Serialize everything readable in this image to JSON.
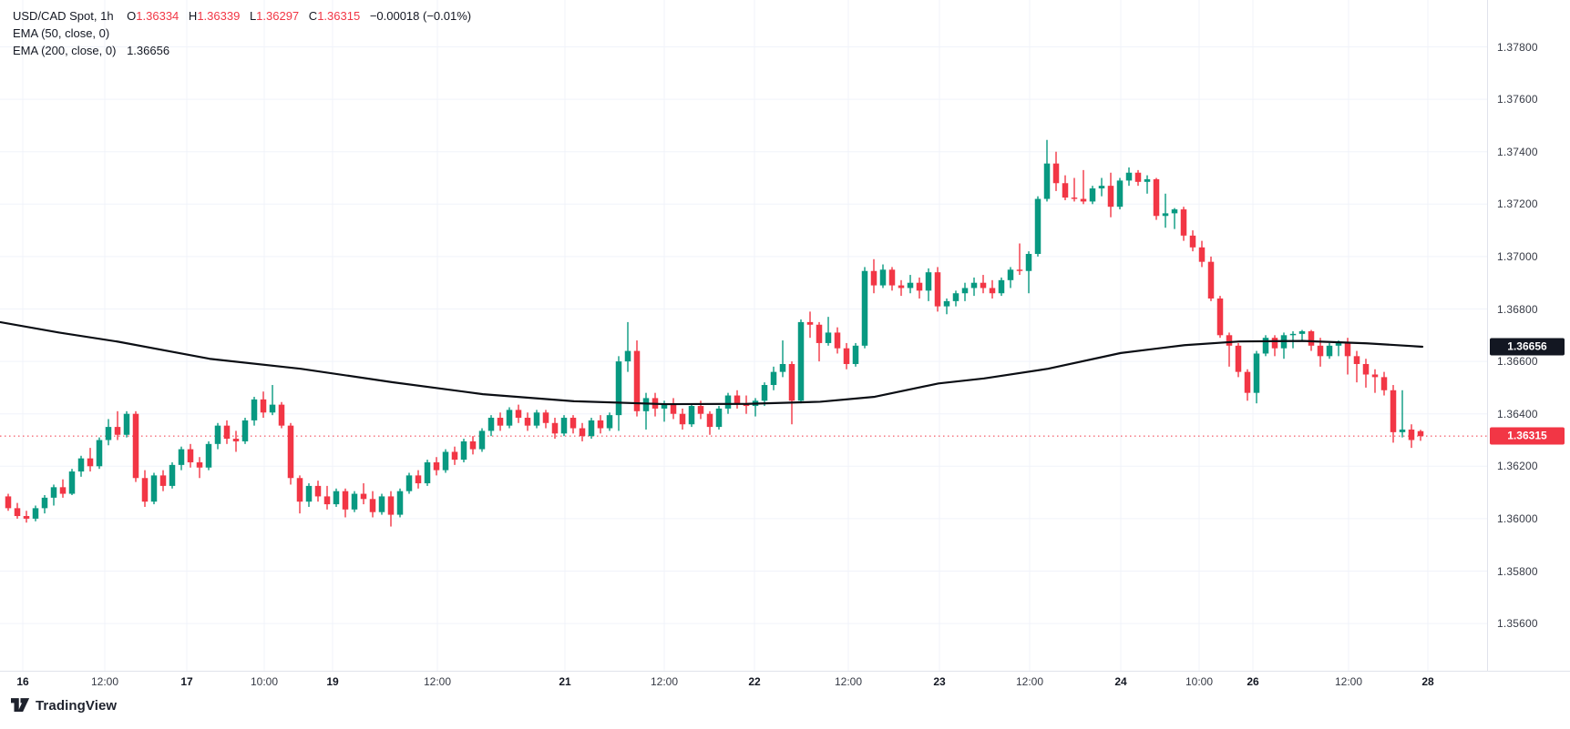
{
  "header": {
    "title": "USD/CAD Spot, 1h",
    "o_label": "O",
    "o": "1.36334",
    "h_label": "H",
    "h": "1.36339",
    "l_label": "L",
    "l": "1.36297",
    "c_label": "C",
    "c": "1.36315",
    "change": "−0.00018 (−0.01%)"
  },
  "indicators": [
    {
      "label": "EMA (50, close, 0)",
      "value": ""
    },
    {
      "label": "EMA (200, close, 0)",
      "value": "1.36656"
    }
  ],
  "logo_text": "TradingView",
  "colors": {
    "up": "#089981",
    "down": "#f23645",
    "ema_line": "#0b0e14",
    "grid": "#f0f3fa",
    "axis_text": "#363a45",
    "last_price": "#f23645",
    "badge_ema_bg": "#131722",
    "badge_last_bg": "#f23645"
  },
  "price_axis": {
    "labels": [
      "1.37800",
      "1.37600",
      "1.37400",
      "1.37200",
      "1.37000",
      "1.36800",
      "1.36600",
      "1.36400",
      "1.36200",
      "1.36000",
      "1.35800",
      "1.35600"
    ],
    "badges": [
      {
        "text": "1.36656",
        "price": 1.36656,
        "bg": "#131722"
      },
      {
        "text": "1.36315",
        "price": 1.36315,
        "bg": "#f23645"
      }
    ]
  },
  "time_axis": {
    "ticks": [
      {
        "label": "16",
        "x": 25,
        "major": true
      },
      {
        "label": "12:00",
        "x": 115,
        "major": false
      },
      {
        "label": "17",
        "x": 205,
        "major": true
      },
      {
        "label": "10:00",
        "x": 290,
        "major": false
      },
      {
        "label": "19",
        "x": 365,
        "major": true
      },
      {
        "label": "12:00",
        "x": 480,
        "major": false
      },
      {
        "label": "21",
        "x": 620,
        "major": true
      },
      {
        "label": "12:00",
        "x": 729,
        "major": false
      },
      {
        "label": "22",
        "x": 828,
        "major": true
      },
      {
        "label": "12:00",
        "x": 931,
        "major": false
      },
      {
        "label": "23",
        "x": 1031,
        "major": true
      },
      {
        "label": "12:00",
        "x": 1130,
        "major": false
      },
      {
        "label": "24",
        "x": 1230,
        "major": true
      },
      {
        "label": "10:00",
        "x": 1316,
        "major": false
      },
      {
        "label": "26",
        "x": 1375,
        "major": true
      },
      {
        "label": "12:00",
        "x": 1480,
        "major": false
      },
      {
        "label": "28",
        "x": 1567,
        "major": true
      }
    ]
  },
  "chart_data": {
    "type": "candlestick",
    "title": "USD/CAD Spot, 1h",
    "symbol": "USD/CAD",
    "timeframe": "1h",
    "ylim": [
      1.3553,
      1.3798
    ],
    "y_tick_step": 0.002,
    "grid": true,
    "last_close": 1.36315,
    "last_ohlc": {
      "open": 1.36334,
      "high": 1.36339,
      "low": 1.36297,
      "close": 1.36315
    },
    "change": -0.00018,
    "change_pct": -0.01,
    "ema200_last": 1.36656,
    "price_line": {
      "price": 1.36315,
      "style": "dotted",
      "color": "#f23645"
    },
    "candles": [
      [
        1.36085,
        1.36095,
        1.3603,
        1.3604
      ],
      [
        1.3604,
        1.3606,
        1.36,
        1.3601
      ],
      [
        1.3601,
        1.3603,
        1.35985,
        1.36
      ],
      [
        1.36,
        1.3605,
        1.3599,
        1.3604
      ],
      [
        1.3604,
        1.3609,
        1.3602,
        1.3608
      ],
      [
        1.3608,
        1.3613,
        1.3605,
        1.3612
      ],
      [
        1.3612,
        1.3615,
        1.3608,
        1.36095
      ],
      [
        1.36095,
        1.3619,
        1.3609,
        1.3618
      ],
      [
        1.3618,
        1.3624,
        1.3616,
        1.3623
      ],
      [
        1.3623,
        1.3627,
        1.3618,
        1.362
      ],
      [
        1.362,
        1.3631,
        1.3619,
        1.363
      ],
      [
        1.363,
        1.3638,
        1.3628,
        1.3635
      ],
      [
        1.3635,
        1.3641,
        1.363,
        1.3632
      ],
      [
        1.3632,
        1.3641,
        1.3631,
        1.364
      ],
      [
        1.364,
        1.3641,
        1.3614,
        1.36155
      ],
      [
        1.36155,
        1.36185,
        1.36045,
        1.36065
      ],
      [
        1.36065,
        1.36175,
        1.36055,
        1.36165
      ],
      [
        1.36165,
        1.36185,
        1.36105,
        1.36125
      ],
      [
        1.36125,
        1.36215,
        1.36115,
        1.36205
      ],
      [
        1.36205,
        1.36275,
        1.36185,
        1.36265
      ],
      [
        1.36265,
        1.36285,
        1.36195,
        1.36215
      ],
      [
        1.36215,
        1.36235,
        1.36155,
        1.36195
      ],
      [
        1.36195,
        1.36295,
        1.36185,
        1.36285
      ],
      [
        1.36285,
        1.36365,
        1.36265,
        1.36355
      ],
      [
        1.36355,
        1.36375,
        1.36285,
        1.36305
      ],
      [
        1.36305,
        1.36335,
        1.36255,
        1.36295
      ],
      [
        1.36295,
        1.36385,
        1.36285,
        1.36375
      ],
      [
        1.36375,
        1.36465,
        1.36355,
        1.36455
      ],
      [
        1.36455,
        1.36485,
        1.36385,
        1.36405
      ],
      [
        1.36405,
        1.3651,
        1.36395,
        1.36435
      ],
      [
        1.36435,
        1.36445,
        1.36345,
        1.36355
      ],
      [
        1.36355,
        1.36365,
        1.3613,
        1.36155
      ],
      [
        1.36155,
        1.36165,
        1.3602,
        1.36065
      ],
      [
        1.36065,
        1.36135,
        1.36045,
        1.36125
      ],
      [
        1.36125,
        1.36145,
        1.36065,
        1.36085
      ],
      [
        1.36085,
        1.36125,
        1.36035,
        1.36055
      ],
      [
        1.36055,
        1.36115,
        1.36045,
        1.36105
      ],
      [
        1.36105,
        1.36115,
        1.36005,
        1.36035
      ],
      [
        1.36035,
        1.36105,
        1.36025,
        1.36095
      ],
      [
        1.36095,
        1.36135,
        1.36055,
        1.36075
      ],
      [
        1.36075,
        1.36105,
        1.36005,
        1.36025
      ],
      [
        1.36025,
        1.36095,
        1.36015,
        1.36085
      ],
      [
        1.36085,
        1.36105,
        1.3597,
        1.36015
      ],
      [
        1.36015,
        1.36115,
        1.36005,
        1.36105
      ],
      [
        1.36105,
        1.36175,
        1.36095,
        1.36165
      ],
      [
        1.36165,
        1.36185,
        1.36115,
        1.36135
      ],
      [
        1.36135,
        1.36225,
        1.36125,
        1.36215
      ],
      [
        1.36215,
        1.36235,
        1.36165,
        1.36185
      ],
      [
        1.36185,
        1.36265,
        1.36175,
        1.36255
      ],
      [
        1.36255,
        1.36275,
        1.36205,
        1.36225
      ],
      [
        1.36225,
        1.36305,
        1.36215,
        1.36295
      ],
      [
        1.36295,
        1.36315,
        1.36245,
        1.36265
      ],
      [
        1.36265,
        1.36345,
        1.36255,
        1.36335
      ],
      [
        1.36335,
        1.36395,
        1.36315,
        1.36385
      ],
      [
        1.36385,
        1.36405,
        1.36335,
        1.36355
      ],
      [
        1.36355,
        1.36425,
        1.36345,
        1.36415
      ],
      [
        1.36415,
        1.36435,
        1.36365,
        1.36385
      ],
      [
        1.36385,
        1.36405,
        1.36335,
        1.36355
      ],
      [
        1.36355,
        1.36415,
        1.36345,
        1.36405
      ],
      [
        1.36405,
        1.36415,
        1.36345,
        1.36365
      ],
      [
        1.36365,
        1.36385,
        1.36305,
        1.36325
      ],
      [
        1.36325,
        1.36395,
        1.36315,
        1.36385
      ],
      [
        1.36385,
        1.36395,
        1.36325,
        1.36345
      ],
      [
        1.36345,
        1.36365,
        1.36295,
        1.36315
      ],
      [
        1.36315,
        1.36385,
        1.36305,
        1.36375
      ],
      [
        1.36375,
        1.36395,
        1.36325,
        1.36345
      ],
      [
        1.36345,
        1.36405,
        1.36335,
        1.36395
      ],
      [
        1.36395,
        1.3662,
        1.36335,
        1.366
      ],
      [
        1.366,
        1.3675,
        1.3656,
        1.3664
      ],
      [
        1.3664,
        1.3668,
        1.3639,
        1.3641
      ],
      [
        1.3641,
        1.3648,
        1.3634,
        1.3646
      ],
      [
        1.3646,
        1.3648,
        1.3639,
        1.3642
      ],
      [
        1.3642,
        1.3645,
        1.3637,
        1.3644
      ],
      [
        1.3644,
        1.3646,
        1.3638,
        1.364
      ],
      [
        1.364,
        1.3642,
        1.3634,
        1.3636
      ],
      [
        1.3636,
        1.3644,
        1.3635,
        1.3643
      ],
      [
        1.3643,
        1.3645,
        1.3638,
        1.364
      ],
      [
        1.364,
        1.3641,
        1.3632,
        1.3635
      ],
      [
        1.3635,
        1.3643,
        1.3634,
        1.3642
      ],
      [
        1.3642,
        1.3648,
        1.364,
        1.3647
      ],
      [
        1.3647,
        1.3649,
        1.3642,
        1.3644
      ],
      [
        1.3644,
        1.3647,
        1.364,
        1.3643
      ],
      [
        1.3643,
        1.3646,
        1.3639,
        1.3645
      ],
      [
        1.3645,
        1.3652,
        1.3643,
        1.3651
      ],
      [
        1.3651,
        1.3658,
        1.3649,
        1.3656
      ],
      [
        1.3656,
        1.3668,
        1.3654,
        1.3659
      ],
      [
        1.3659,
        1.366,
        1.3636,
        1.3645
      ],
      [
        1.3645,
        1.3676,
        1.3644,
        1.3675
      ],
      [
        1.3675,
        1.3679,
        1.3669,
        1.3674
      ],
      [
        1.3674,
        1.3675,
        1.366,
        1.3667
      ],
      [
        1.3667,
        1.3677,
        1.3666,
        1.3671
      ],
      [
        1.3671,
        1.3673,
        1.3663,
        1.3665
      ],
      [
        1.3665,
        1.3667,
        1.3657,
        1.3659
      ],
      [
        1.3659,
        1.3667,
        1.3658,
        1.3666
      ],
      [
        1.3666,
        1.3696,
        1.3665,
        1.36945
      ],
      [
        1.36945,
        1.3699,
        1.3686,
        1.3689
      ],
      [
        1.3689,
        1.3697,
        1.3688,
        1.3695
      ],
      [
        1.3695,
        1.3696,
        1.3687,
        1.3689
      ],
      [
        1.3689,
        1.3691,
        1.3685,
        1.3688
      ],
      [
        1.3688,
        1.3693,
        1.3686,
        1.369
      ],
      [
        1.369,
        1.3692,
        1.3684,
        1.3687
      ],
      [
        1.3687,
        1.36955,
        1.3683,
        1.3694
      ],
      [
        1.3694,
        1.3696,
        1.3679,
        1.3681
      ],
      [
        1.3681,
        1.3684,
        1.3678,
        1.3683
      ],
      [
        1.3683,
        1.3687,
        1.3681,
        1.3686
      ],
      [
        1.3686,
        1.369,
        1.3683,
        1.3688
      ],
      [
        1.3688,
        1.3692,
        1.3685,
        1.369
      ],
      [
        1.369,
        1.3693,
        1.3686,
        1.3688
      ],
      [
        1.3688,
        1.3691,
        1.3684,
        1.3686
      ],
      [
        1.3686,
        1.3692,
        1.3685,
        1.3691
      ],
      [
        1.3691,
        1.3696,
        1.3688,
        1.3695
      ],
      [
        1.3695,
        1.3705,
        1.3693,
        1.36945
      ],
      [
        1.36945,
        1.3702,
        1.3686,
        1.3701
      ],
      [
        1.3701,
        1.3723,
        1.37,
        1.3722
      ],
      [
        1.3722,
        1.37445,
        1.3721,
        1.37355
      ],
      [
        1.37355,
        1.374,
        1.3725,
        1.3728
      ],
      [
        1.3728,
        1.3731,
        1.37215,
        1.37225
      ],
      [
        1.37225,
        1.373,
        1.3721,
        1.3722
      ],
      [
        1.3722,
        1.3733,
        1.372,
        1.3721
      ],
      [
        1.3721,
        1.3727,
        1.372,
        1.3726
      ],
      [
        1.3726,
        1.373,
        1.3723,
        1.3727
      ],
      [
        1.3727,
        1.3732,
        1.3715,
        1.3719
      ],
      [
        1.3719,
        1.373,
        1.3718,
        1.3729
      ],
      [
        1.3729,
        1.3734,
        1.3727,
        1.3732
      ],
      [
        1.3732,
        1.3733,
        1.3727,
        1.37285
      ],
      [
        1.37285,
        1.3731,
        1.3724,
        1.37295
      ],
      [
        1.37295,
        1.373,
        1.3714,
        1.37155
      ],
      [
        1.37155,
        1.3724,
        1.3711,
        1.37165
      ],
      [
        1.37165,
        1.37185,
        1.37105,
        1.3718
      ],
      [
        1.3718,
        1.3719,
        1.3706,
        1.3708
      ],
      [
        1.3708,
        1.371,
        1.3702,
        1.37035
      ],
      [
        1.37035,
        1.3706,
        1.3696,
        1.3698
      ],
      [
        1.3698,
        1.37,
        1.3683,
        1.3684
      ],
      [
        1.3684,
        1.3685,
        1.3669,
        1.367
      ],
      [
        1.367,
        1.3671,
        1.3658,
        1.3666
      ],
      [
        1.3666,
        1.3667,
        1.3654,
        1.3656
      ],
      [
        1.3656,
        1.3657,
        1.3645,
        1.3648
      ],
      [
        1.3648,
        1.3664,
        1.3644,
        1.3663
      ],
      [
        1.3663,
        1.367,
        1.3662,
        1.3669
      ],
      [
        1.3669,
        1.367,
        1.3662,
        1.3665
      ],
      [
        1.3665,
        1.3671,
        1.3661,
        1.367
      ],
      [
        1.367,
        1.36715,
        1.3665,
        1.36705
      ],
      [
        1.36705,
        1.3672,
        1.3668,
        1.36715
      ],
      [
        1.36715,
        1.3672,
        1.3664,
        1.3666
      ],
      [
        1.3666,
        1.3669,
        1.3658,
        1.3662
      ],
      [
        1.3662,
        1.3667,
        1.3661,
        1.3666
      ],
      [
        1.3666,
        1.3668,
        1.3662,
        1.3667
      ],
      [
        1.3667,
        1.3669,
        1.3655,
        1.3662
      ],
      [
        1.3662,
        1.3664,
        1.3652,
        1.3659
      ],
      [
        1.3659,
        1.3661,
        1.365,
        1.3655
      ],
      [
        1.3655,
        1.3657,
        1.3648,
        1.3654
      ],
      [
        1.3654,
        1.3656,
        1.3647,
        1.3649
      ],
      [
        1.3649,
        1.3651,
        1.3629,
        1.3633
      ],
      [
        1.3633,
        1.3649,
        1.3631,
        1.3634
      ],
      [
        1.3634,
        1.3636,
        1.3627,
        1.363
      ],
      [
        1.36334,
        1.36339,
        1.36297,
        1.36315
      ]
    ],
    "ema200_points": [
      [
        0,
        1.3675
      ],
      [
        65,
        1.3671
      ],
      [
        130,
        1.36675
      ],
      [
        230,
        1.3661
      ],
      [
        330,
        1.36572
      ],
      [
        430,
        1.36521
      ],
      [
        530,
        1.36475
      ],
      [
        630,
        1.36448
      ],
      [
        730,
        1.36437
      ],
      [
        820,
        1.36438
      ],
      [
        900,
        1.36446
      ],
      [
        960,
        1.36465
      ],
      [
        1030,
        1.36516
      ],
      [
        1080,
        1.36535
      ],
      [
        1150,
        1.36572
      ],
      [
        1230,
        1.36632
      ],
      [
        1300,
        1.36662
      ],
      [
        1360,
        1.36676
      ],
      [
        1430,
        1.36678
      ],
      [
        1500,
        1.36669
      ],
      [
        1561,
        1.36656
      ]
    ]
  }
}
